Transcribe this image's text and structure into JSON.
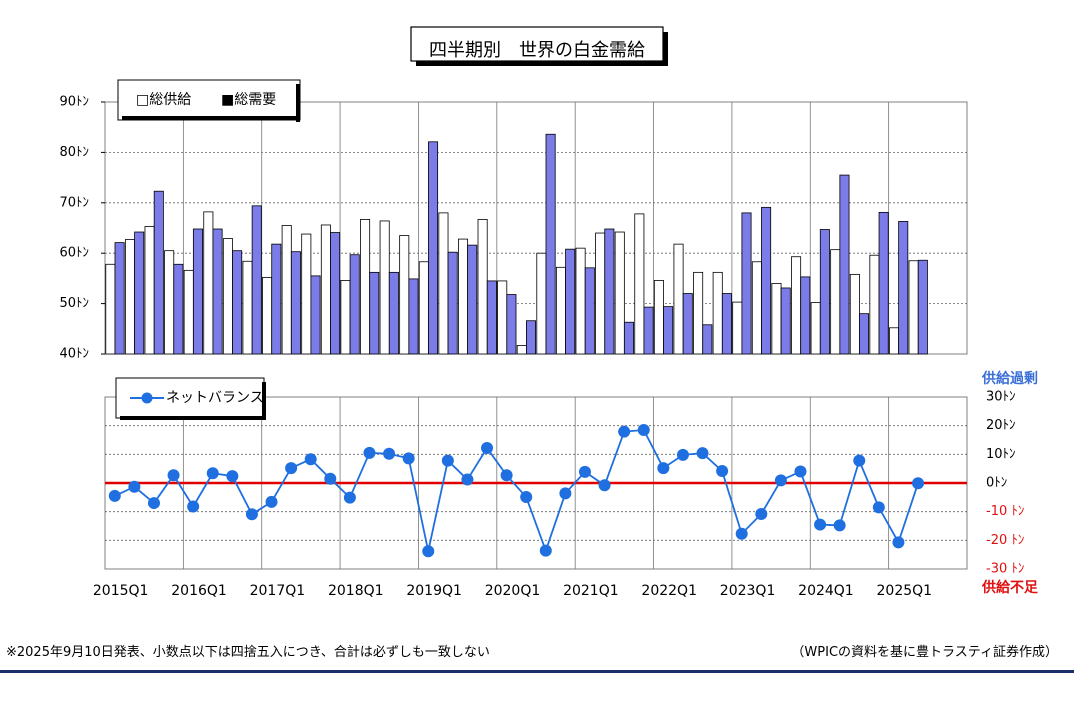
{
  "footnote_left": "※2025年9月10日発表、小数点以下は四捨五入につき、合計は必ずしも一致しない",
  "footnote_right": "（WPICの資料を基に豊トラスティ証券作成）",
  "colors": {
    "supply_fill": "#ffffff",
    "demand_fill": "#7c7ce8",
    "balance_line": "#1f6fe0",
    "zero_line": "#e00000",
    "surplus_label": "#3a6fd8",
    "deficit_label": "#e01010",
    "rule": "#1b2f6b"
  },
  "chart_data": [
    {
      "type": "bar",
      "title": "四半期別　世界の白金需給",
      "categories": [
        "2015Q1",
        "2015Q2",
        "2015Q3",
        "2015Q4",
        "2016Q1",
        "2016Q2",
        "2016Q3",
        "2016Q4",
        "2017Q1",
        "2017Q2",
        "2017Q3",
        "2017Q4",
        "2018Q1",
        "2018Q2",
        "2018Q3",
        "2018Q4",
        "2019Q1",
        "2019Q2",
        "2019Q3",
        "2019Q4",
        "2020Q1",
        "2020Q2",
        "2020Q3",
        "2020Q4",
        "2021Q1",
        "2021Q2",
        "2021Q3",
        "2021Q4",
        "2022Q1",
        "2022Q2",
        "2022Q3",
        "2022Q4",
        "2023Q1",
        "2023Q2",
        "2023Q3",
        "2023Q4",
        "2024Q1",
        "2024Q2",
        "2024Q3",
        "2024Q4",
        "2025Q1",
        "2025Q2"
      ],
      "x_tick_labels": [
        "2015Q1",
        "2016Q1",
        "2017Q1",
        "2018Q1",
        "2019Q1",
        "2020Q1",
        "2021Q1",
        "2022Q1",
        "2023Q1",
        "2024Q1",
        "2025Q1"
      ],
      "series": [
        {
          "name": "総供給",
          "values": [
            57.8,
            62.7,
            65.3,
            60.5,
            56.6,
            68.2,
            62.9,
            58.4,
            55.2,
            65.5,
            63.8,
            65.6,
            54.6,
            66.7,
            66.4,
            63.5,
            58.3,
            68.0,
            62.8,
            66.7,
            54.5,
            41.7,
            60.0,
            57.2,
            61.0,
            64.0,
            64.2,
            67.8,
            54.6,
            61.8,
            56.2,
            56.2,
            50.3,
            58.3,
            54.0,
            59.3,
            50.2,
            60.7,
            55.8,
            59.6,
            45.2,
            58.5
          ]
        },
        {
          "name": "総需要",
          "values": [
            62.1,
            64.2,
            72.3,
            57.8,
            64.8,
            64.8,
            60.5,
            69.4,
            61.8,
            60.3,
            55.5,
            64.1,
            59.7,
            56.2,
            56.2,
            54.9,
            82.1,
            60.2,
            61.6,
            54.5,
            51.8,
            46.6,
            83.6,
            60.8,
            57.1,
            64.8,
            46.3,
            49.3,
            49.4,
            52.0,
            45.8,
            52.0,
            68.0,
            69.1,
            53.1,
            55.3,
            64.7,
            75.5,
            48.0,
            68.1,
            66.3,
            58.6
          ]
        }
      ],
      "y_tick_labels": [
        "90ﾄﾝ",
        "80ﾄﾝ",
        "70ﾄﾝ",
        "60ﾄﾝ",
        "50ﾄﾝ",
        "40ﾄﾝ"
      ],
      "y_ticks": [
        90,
        80,
        70,
        60,
        50,
        40
      ],
      "ylim": [
        40,
        90
      ],
      "legend": [
        "□総供給",
        "■総需要"
      ],
      "legend_position": "top-left"
    },
    {
      "type": "line",
      "categories_ref": "same as bar chart",
      "series": [
        {
          "name": "ネットバランス",
          "values": [
            -4.5,
            -1.3,
            -7.0,
            2.7,
            -8.2,
            3.4,
            2.4,
            -10.9,
            -6.6,
            5.2,
            8.3,
            1.5,
            -5.1,
            10.5,
            10.2,
            8.6,
            -23.8,
            7.8,
            1.2,
            12.2,
            2.7,
            -4.9,
            -23.6,
            -3.6,
            3.9,
            -0.8,
            17.9,
            18.5,
            5.2,
            9.8,
            10.4,
            4.2,
            -17.7,
            -10.8,
            0.9,
            4.0,
            -14.5,
            -14.8,
            7.8,
            -8.5,
            -20.7,
            -0.1
          ]
        }
      ],
      "legend": "ネットバランス",
      "legend_position": "top-left",
      "right_axis_header": "供給過剰",
      "right_axis_footer": "供給不足",
      "right_tick_labels": [
        "30ﾄﾝ",
        "20ﾄﾝ",
        "10ﾄﾝ",
        "0ﾄﾝ",
        "-10 ﾄﾝ",
        "-20 ﾄﾝ",
        "-30 ﾄﾝ"
      ],
      "right_ticks": [
        30,
        20,
        10,
        0,
        -10,
        -20,
        -30
      ],
      "ylim": [
        -30,
        30
      ]
    }
  ]
}
